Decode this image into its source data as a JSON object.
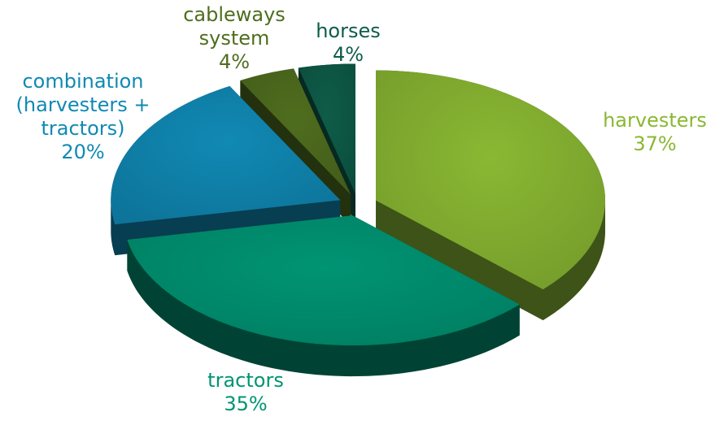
{
  "chart_data": {
    "type": "pie",
    "categories": [
      "harvesters",
      "tractors",
      "combination (harvesters + tractors)",
      "cableways system",
      "horses"
    ],
    "values": [
      37,
      35,
      20,
      4,
      4
    ],
    "value_labels": [
      "37%",
      "35%",
      "20%",
      "4%",
      "4%"
    ],
    "colors": [
      "#8ab833",
      "#009473",
      "#1089b4",
      "#4f6d1e",
      "#0e5c49"
    ]
  }
}
